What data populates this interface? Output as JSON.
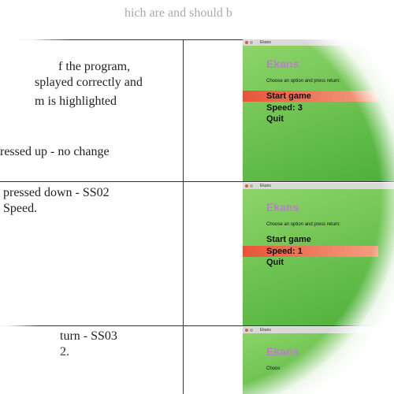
{
  "header": {
    "text": "hich are and should b"
  },
  "rows": [
    {
      "lines": [
        "f the program,",
        "splayed correctly and",
        "m is highlighted",
        "ressed up - no change"
      ],
      "screenshot": {
        "window_title": "Ekans",
        "title": "Ekans",
        "prompt": "Choose an option and press return:",
        "options": [
          "Start game",
          "Speed: 3",
          "Quit"
        ],
        "selected": 0
      }
    },
    {
      "lines": [
        "pressed down - SS02",
        "Speed."
      ],
      "screenshot": {
        "window_title": "Ekans",
        "title": "Ekans",
        "prompt": "Choose an option and press return:",
        "options": [
          "Start game",
          "Speed: 1",
          "Quit"
        ],
        "selected": 1
      }
    },
    {
      "lines": [
        "turn - SS03",
        "2."
      ],
      "screenshot": {
        "window_title": "Ekans",
        "title": "Ekans",
        "prompt": "Choos",
        "options": [],
        "selected": null
      }
    }
  ]
}
